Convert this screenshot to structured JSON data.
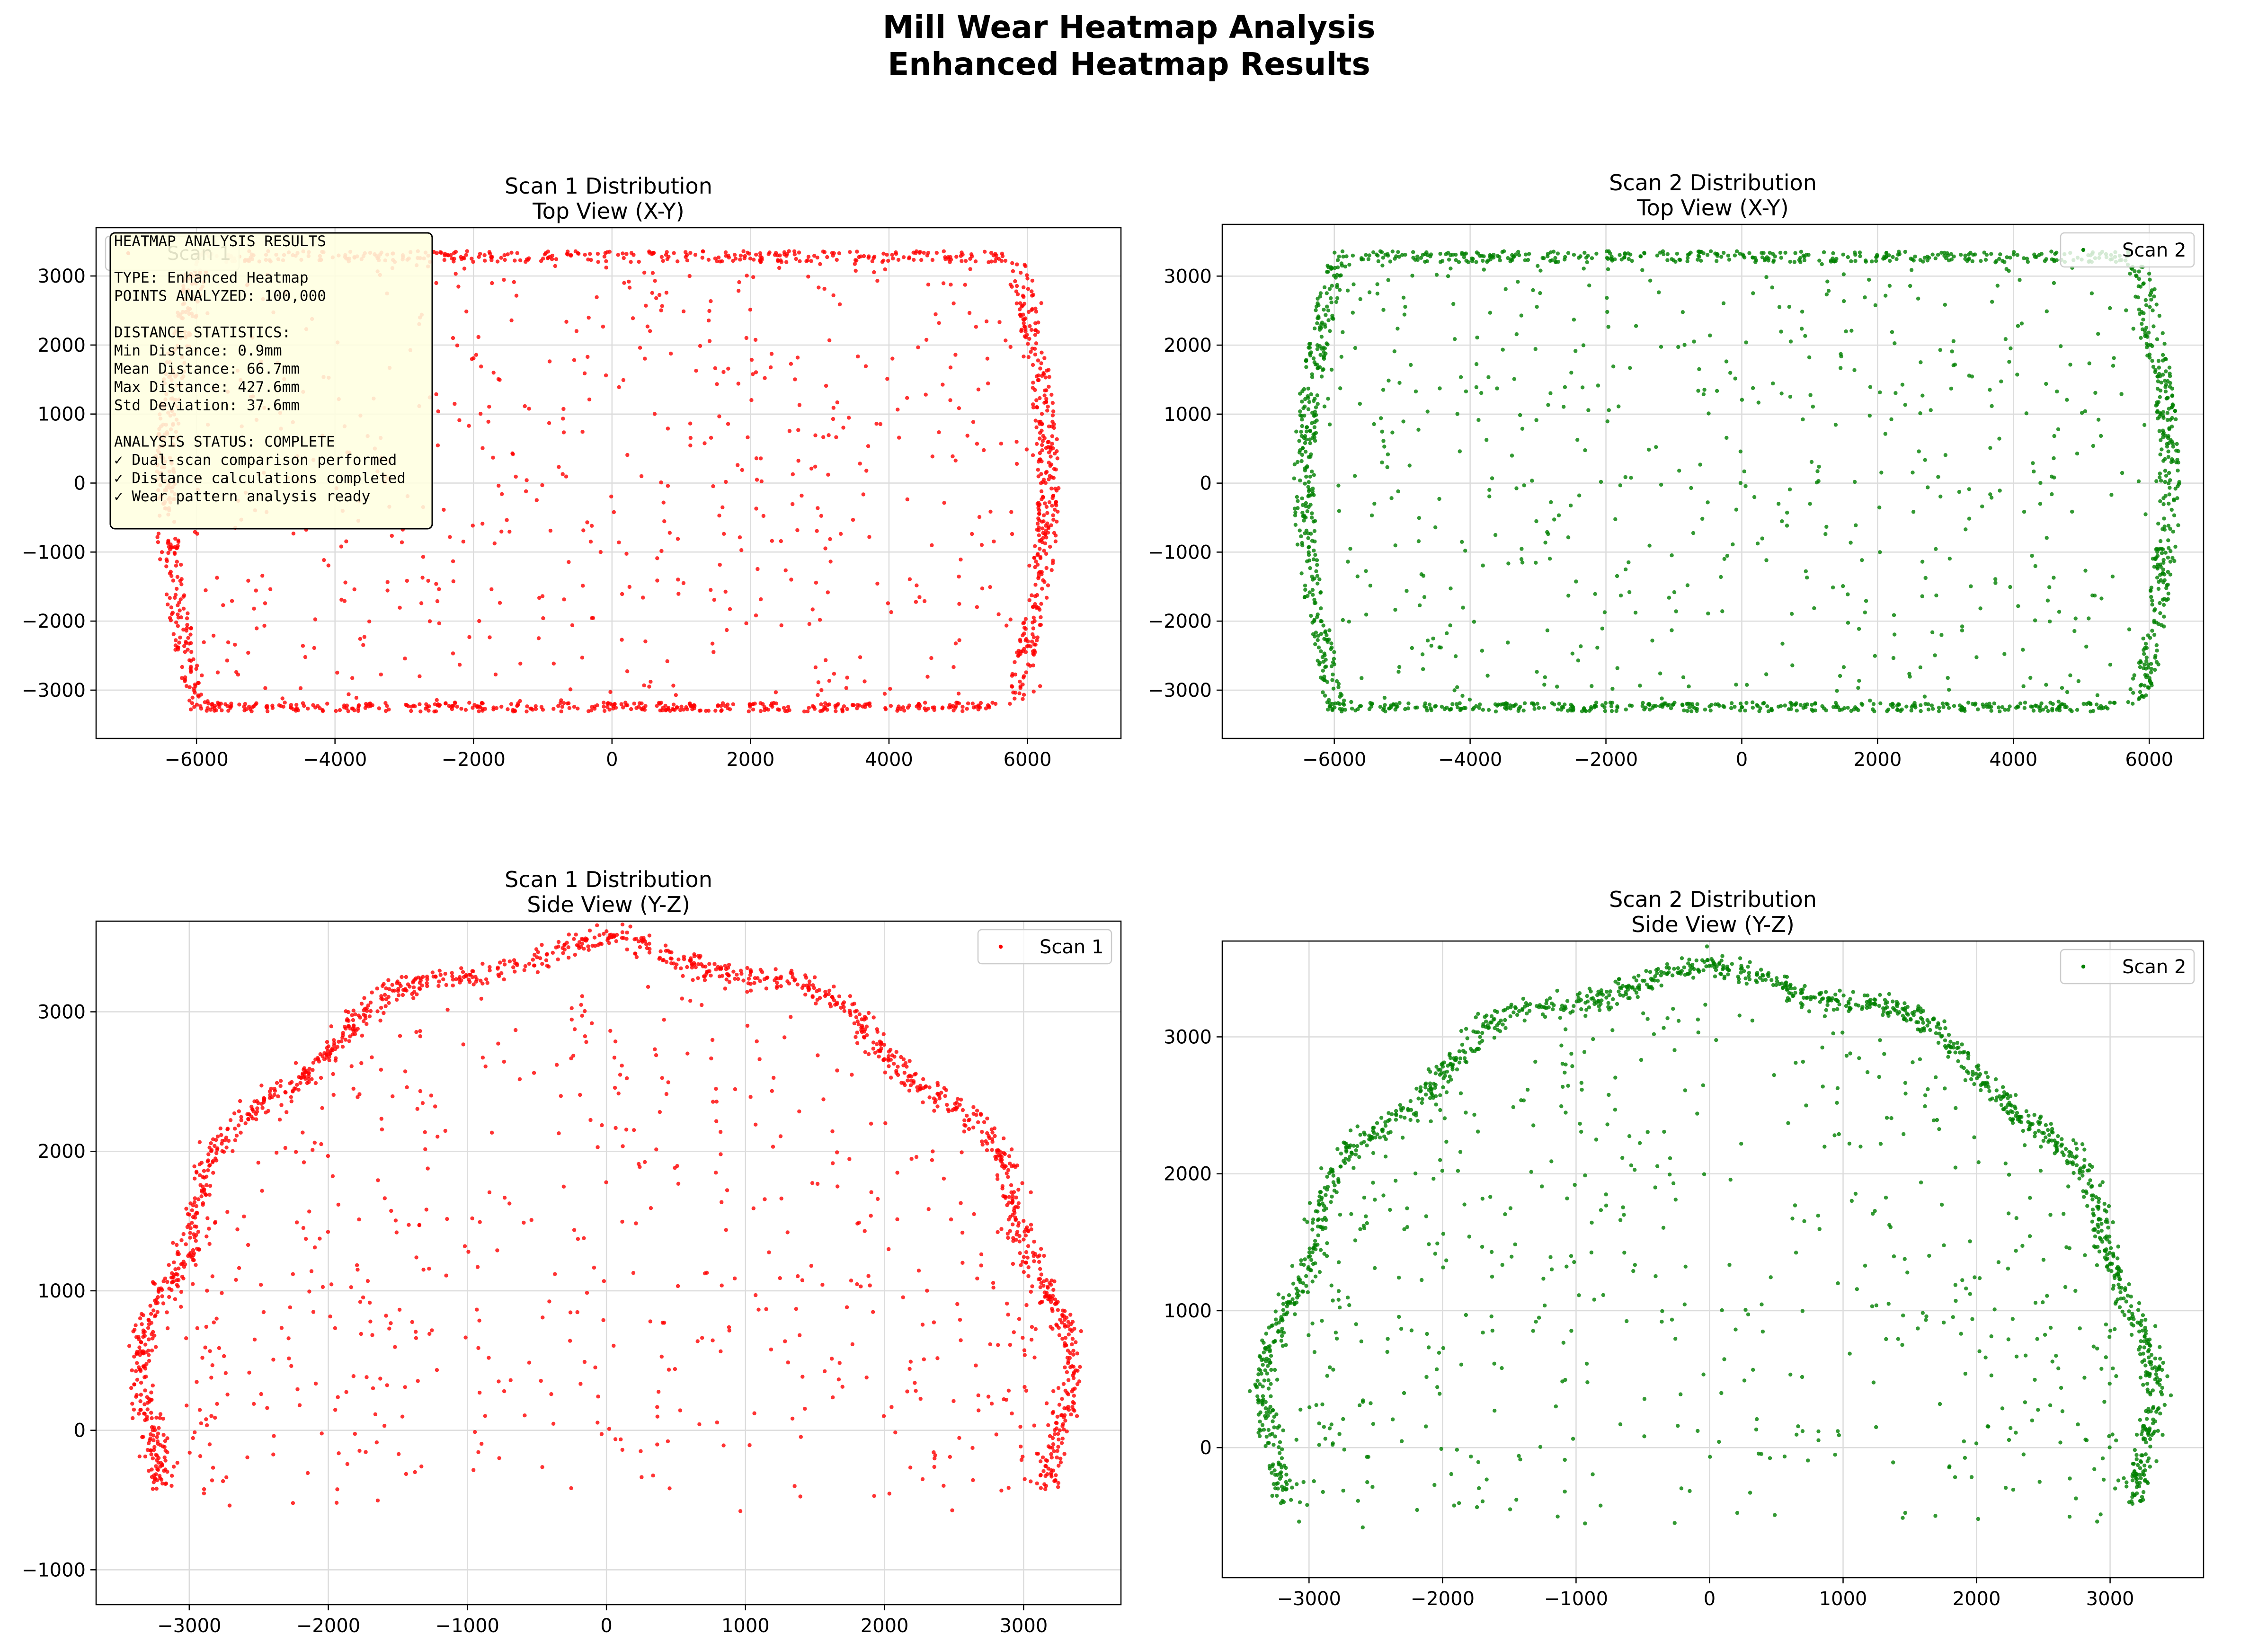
{
  "figure": {
    "title_lines": [
      "Mill Wear Heatmap Analysis",
      "Enhanced Heatmap Results"
    ]
  },
  "info_box": {
    "lines": [
      "HEATMAP ANALYSIS RESULTS",
      "",
      "TYPE: Enhanced Heatmap",
      "POINTS ANALYZED: 100,000",
      "",
      "DISTANCE STATISTICS:",
      "Min Distance: 0.9mm",
      "Mean Distance: 66.7mm",
      "Max Distance: 427.6mm",
      "Std Deviation: 37.6mm",
      "",
      "ANALYSIS STATUS: COMPLETE",
      "✓ Dual-scan comparison performed",
      "✓ Distance calculations completed",
      "✓ Wear pattern analysis ready"
    ],
    "background": "#ffffe0"
  },
  "chart_data": [
    {
      "type": "scatter",
      "title_lines": [
        "Scan 1 Distribution",
        "Top View (X-Y)"
      ],
      "series": [
        {
          "name": "Scan 1",
          "color": "#ff0000",
          "shape": "top",
          "n": 1900,
          "seed": 11
        }
      ],
      "xlim": [
        -7450,
        7350
      ],
      "ylim": [
        -3700,
        3700
      ],
      "xticks": [
        -6000,
        -4000,
        -2000,
        0,
        2000,
        4000,
        6000
      ],
      "yticks": [
        -3000,
        -2000,
        -1000,
        0,
        1000,
        2000,
        3000
      ],
      "xticklabels": [
        "−6000",
        "−4000",
        "−2000",
        "0",
        "2000",
        "4000",
        "6000"
      ],
      "yticklabels": [
        "−3000",
        "−2000",
        "−1000",
        "0",
        "1000",
        "2000",
        "3000"
      ],
      "legend": "top-left",
      "grid": true
    },
    {
      "type": "scatter",
      "title_lines": [
        "Scan 2 Distribution",
        "Top View (X-Y)"
      ],
      "series": [
        {
          "name": "Scan 2",
          "color": "#008000",
          "shape": "top",
          "n": 1900,
          "seed": 23
        }
      ],
      "xlim": [
        -7650,
        6800
      ],
      "ylim": [
        -3700,
        3750
      ],
      "xticks": [
        -6000,
        -4000,
        -2000,
        0,
        2000,
        4000,
        6000
      ],
      "yticks": [
        -3000,
        -2000,
        -1000,
        0,
        1000,
        2000,
        3000
      ],
      "xticklabels": [
        "−6000",
        "−4000",
        "−2000",
        "0",
        "2000",
        "4000",
        "6000"
      ],
      "yticklabels": [
        "−3000",
        "−2000",
        "−1000",
        "0",
        "1000",
        "2000",
        "3000"
      ],
      "legend": "top-right",
      "grid": true
    },
    {
      "type": "scatter",
      "title_lines": [
        "Scan 1 Distribution",
        "Side View (Y-Z)"
      ],
      "series": [
        {
          "name": "Scan 1",
          "color": "#ff0000",
          "shape": "side",
          "n": 1900,
          "seed": 37
        }
      ],
      "xlim": [
        -3670,
        3700
      ],
      "ylim": [
        -1250,
        3650
      ],
      "xticks": [
        -3000,
        -2000,
        -1000,
        0,
        1000,
        2000,
        3000
      ],
      "yticks": [
        -1000,
        0,
        1000,
        2000,
        3000
      ],
      "xticklabels": [
        "−3000",
        "−2000",
        "−1000",
        "0",
        "1000",
        "2000",
        "3000"
      ],
      "yticklabels": [
        "−1000",
        "0",
        "1000",
        "2000",
        "3000"
      ],
      "legend": "top-right",
      "grid": true
    },
    {
      "type": "scatter",
      "title_lines": [
        "Scan 2 Distribution",
        "Side View (Y-Z)"
      ],
      "series": [
        {
          "name": "Scan 2",
          "color": "#008000",
          "shape": "side",
          "n": 1900,
          "seed": 53
        }
      ],
      "xlim": [
        -3650,
        3700
      ],
      "ylim": [
        -950,
        3700
      ],
      "xticks": [
        -3000,
        -2000,
        -1000,
        0,
        1000,
        2000,
        3000
      ],
      "yticks": [
        0,
        1000,
        2000,
        3000
      ],
      "xticklabels": [
        "−3000",
        "−2000",
        "−1000",
        "0",
        "1000",
        "2000",
        "3000"
      ],
      "yticklabels": [
        "0",
        "1000",
        "2000",
        "3000"
      ],
      "legend": "top-right",
      "grid": true
    }
  ]
}
